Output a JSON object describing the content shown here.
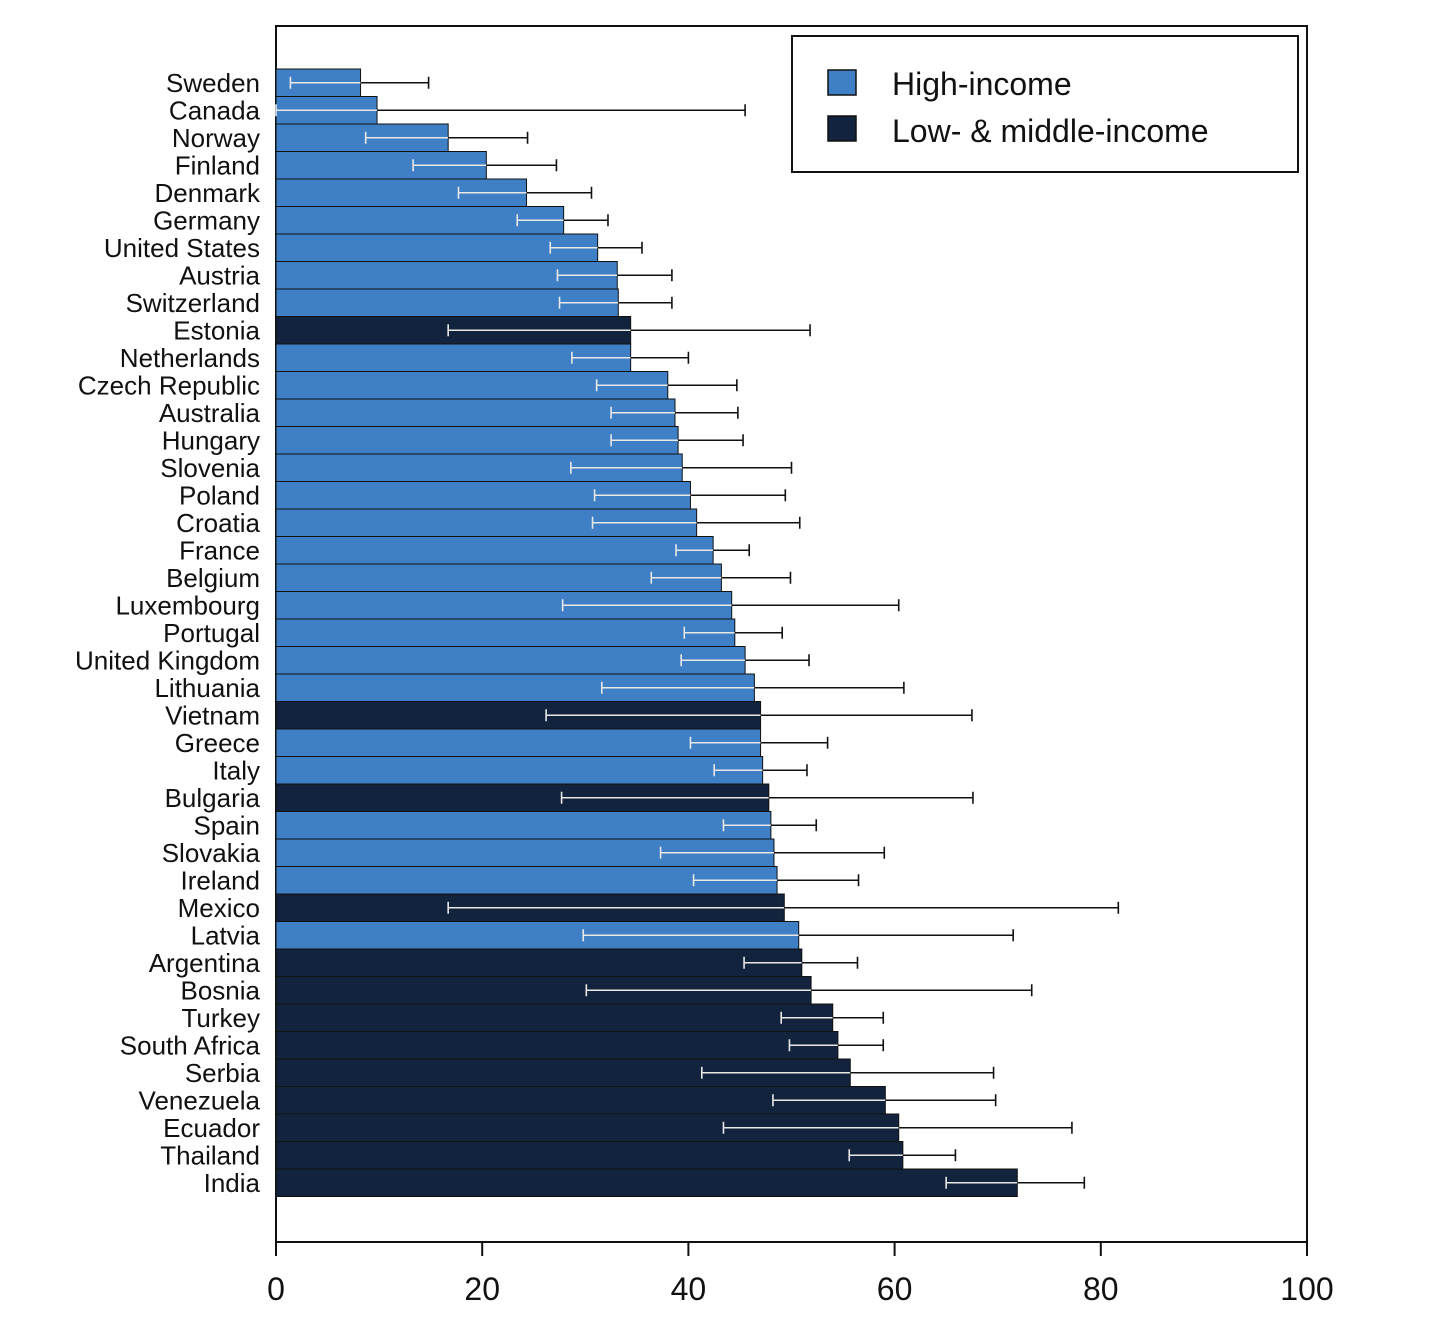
{
  "chart_data": {
    "type": "bar",
    "orientation": "horizontal",
    "title": "",
    "xlabel": "",
    "ylabel": "",
    "xlim": [
      0,
      100
    ],
    "x_ticks": [
      0,
      20,
      40,
      60,
      80,
      100
    ],
    "grid": false,
    "legend_position": "top-right",
    "colors": {
      "High-income": "#3f7fc6",
      "Low- & middle-income": "#12233d"
    },
    "legend": [
      {
        "name": "High-income",
        "color": "#3f7fc6"
      },
      {
        "name": "Low- & middle-income",
        "color": "#12233d"
      }
    ],
    "bars": [
      {
        "country": "Sweden",
        "value": 8.2,
        "low": 1.4,
        "high": 14.8,
        "group": "High-income"
      },
      {
        "country": "Canada",
        "value": 9.8,
        "low": 0.0,
        "high": 45.5,
        "group": "High-income"
      },
      {
        "country": "Norway",
        "value": 16.7,
        "low": 8.7,
        "high": 24.4,
        "group": "High-income"
      },
      {
        "country": "Finland",
        "value": 20.4,
        "low": 13.3,
        "high": 27.2,
        "group": "High-income"
      },
      {
        "country": "Denmark",
        "value": 24.3,
        "low": 17.7,
        "high": 30.6,
        "group": "High-income"
      },
      {
        "country": "Germany",
        "value": 27.9,
        "low": 23.4,
        "high": 32.2,
        "group": "High-income"
      },
      {
        "country": "United States",
        "value": 31.2,
        "low": 26.6,
        "high": 35.5,
        "group": "High-income"
      },
      {
        "country": "Austria",
        "value": 33.1,
        "low": 27.3,
        "high": 38.4,
        "group": "High-income"
      },
      {
        "country": "Switzerland",
        "value": 33.2,
        "low": 27.5,
        "high": 38.4,
        "group": "High-income"
      },
      {
        "country": "Estonia",
        "value": 34.4,
        "low": 16.7,
        "high": 51.8,
        "group": "Low- & middle-income"
      },
      {
        "country": "Netherlands",
        "value": 34.4,
        "low": 28.7,
        "high": 40.0,
        "group": "High-income"
      },
      {
        "country": "Czech Republic",
        "value": 38.0,
        "low": 31.1,
        "high": 44.7,
        "group": "High-income"
      },
      {
        "country": "Australia",
        "value": 38.7,
        "low": 32.5,
        "high": 44.8,
        "group": "High-income"
      },
      {
        "country": "Hungary",
        "value": 39.0,
        "low": 32.5,
        "high": 45.3,
        "group": "High-income"
      },
      {
        "country": "Slovenia",
        "value": 39.4,
        "low": 28.6,
        "high": 50.0,
        "group": "High-income"
      },
      {
        "country": "Poland",
        "value": 40.2,
        "low": 30.9,
        "high": 49.4,
        "group": "High-income"
      },
      {
        "country": "Croatia",
        "value": 40.8,
        "low": 30.7,
        "high": 50.8,
        "group": "High-income"
      },
      {
        "country": "France",
        "value": 42.4,
        "low": 38.8,
        "high": 45.9,
        "group": "High-income"
      },
      {
        "country": "Belgium",
        "value": 43.2,
        "low": 36.4,
        "high": 49.9,
        "group": "High-income"
      },
      {
        "country": "Luxembourg",
        "value": 44.2,
        "low": 27.8,
        "high": 60.4,
        "group": "High-income"
      },
      {
        "country": "Portugal",
        "value": 44.5,
        "low": 39.6,
        "high": 49.1,
        "group": "High-income"
      },
      {
        "country": "United Kingdom",
        "value": 45.5,
        "low": 39.3,
        "high": 51.7,
        "group": "High-income"
      },
      {
        "country": "Lithuania",
        "value": 46.4,
        "low": 31.6,
        "high": 60.9,
        "group": "High-income"
      },
      {
        "country": "Vietnam",
        "value": 47.0,
        "low": 26.2,
        "high": 67.5,
        "group": "Low- & middle-income"
      },
      {
        "country": "Greece",
        "value": 47.0,
        "low": 40.2,
        "high": 53.5,
        "group": "High-income"
      },
      {
        "country": "Italy",
        "value": 47.2,
        "low": 42.5,
        "high": 51.5,
        "group": "High-income"
      },
      {
        "country": "Bulgaria",
        "value": 47.8,
        "low": 27.7,
        "high": 67.6,
        "group": "Low- & middle-income"
      },
      {
        "country": "Spain",
        "value": 48.0,
        "low": 43.4,
        "high": 52.4,
        "group": "High-income"
      },
      {
        "country": "Slovakia",
        "value": 48.3,
        "low": 37.3,
        "high": 59.0,
        "group": "High-income"
      },
      {
        "country": "Ireland",
        "value": 48.6,
        "low": 40.5,
        "high": 56.5,
        "group": "High-income"
      },
      {
        "country": "Mexico",
        "value": 49.3,
        "low": 16.7,
        "high": 81.7,
        "group": "Low- & middle-income"
      },
      {
        "country": "Latvia",
        "value": 50.7,
        "low": 29.8,
        "high": 71.5,
        "group": "High-income"
      },
      {
        "country": "Argentina",
        "value": 51.0,
        "low": 45.4,
        "high": 56.4,
        "group": "Low- & middle-income"
      },
      {
        "country": "Bosnia",
        "value": 51.9,
        "low": 30.1,
        "high": 73.3,
        "group": "Low- & middle-income"
      },
      {
        "country": "Turkey",
        "value": 54.0,
        "low": 49.0,
        "high": 58.9,
        "group": "Low- & middle-income"
      },
      {
        "country": "South Africa",
        "value": 54.5,
        "low": 49.8,
        "high": 58.9,
        "group": "Low- & middle-income"
      },
      {
        "country": "Serbia",
        "value": 55.7,
        "low": 41.3,
        "high": 69.6,
        "group": "Low- & middle-income"
      },
      {
        "country": "Venezuela",
        "value": 59.1,
        "low": 48.2,
        "high": 69.8,
        "group": "Low- & middle-income"
      },
      {
        "country": "Ecuador",
        "value": 60.4,
        "low": 43.4,
        "high": 77.2,
        "group": "Low- & middle-income"
      },
      {
        "country": "Thailand",
        "value": 60.8,
        "low": 55.6,
        "high": 65.9,
        "group": "Low- & middle-income"
      },
      {
        "country": "India",
        "value": 71.9,
        "low": 65.0,
        "high": 78.4,
        "group": "Low- & middle-income"
      }
    ]
  }
}
